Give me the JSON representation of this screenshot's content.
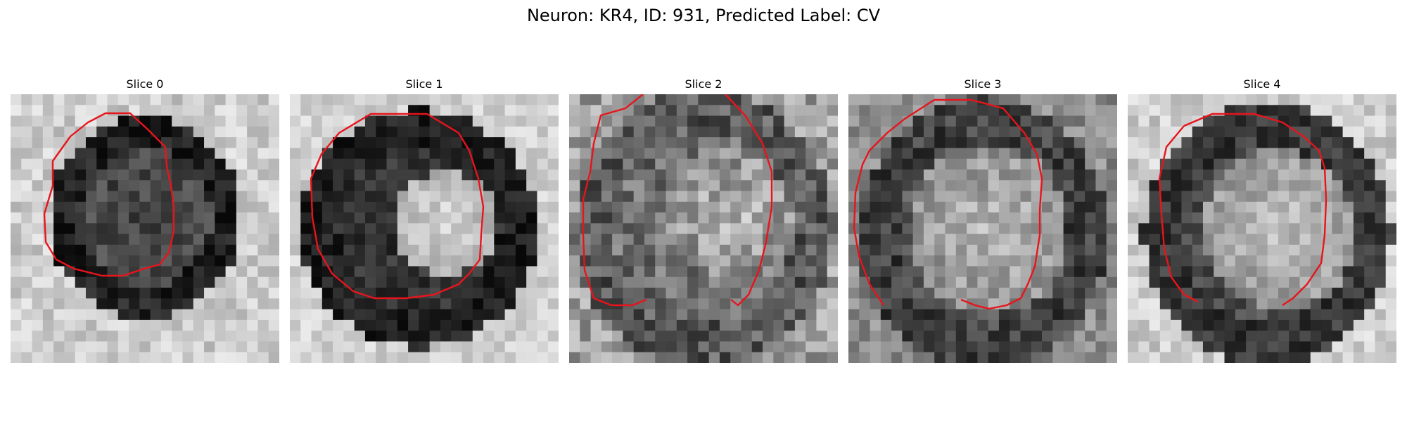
{
  "figure": {
    "title": "Neuron: KR4, ID: 931, Predicted Label: CV"
  },
  "panels": [
    {
      "title": "Slice 0"
    },
    {
      "title": "Slice 1"
    },
    {
      "title": "Slice 2"
    },
    {
      "title": "Slice 3"
    },
    {
      "title": "Slice 4"
    }
  ],
  "colors": {
    "contour": "#e8141c",
    "colormap": "grayscale"
  }
}
